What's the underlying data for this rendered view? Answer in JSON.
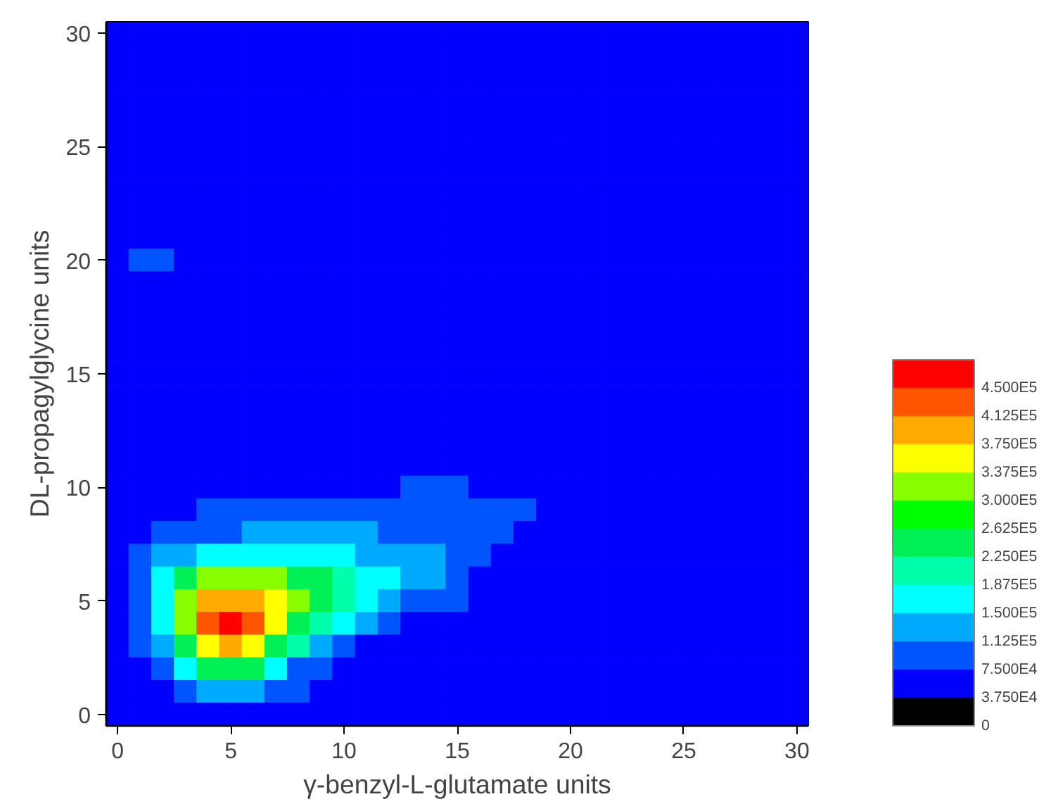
{
  "chart_data": {
    "type": "heatmap",
    "xlabel": "γ-benzyl-L-glutamate units",
    "ylabel": "DL-propagylglycine units",
    "categories": [
      "0",
      null,
      null,
      null,
      null,
      "5",
      null,
      null,
      null,
      null,
      "10",
      null,
      null,
      null,
      null,
      "15",
      null,
      null,
      null,
      null,
      "20",
      null,
      null,
      null,
      null,
      "25",
      null,
      null,
      null,
      null,
      "30"
    ],
    "y_categories": [
      "30",
      null,
      null,
      null,
      null,
      "25",
      null,
      null,
      null,
      null,
      "20",
      null,
      null,
      null,
      null,
      "15",
      null,
      null,
      null,
      null,
      "10",
      null,
      null,
      null,
      null,
      "5",
      null,
      null,
      null,
      null,
      "0"
    ],
    "cells": [
      [
        37500,
        37500,
        37500,
        37500,
        37500,
        37500,
        37500,
        37500,
        37500,
        37500,
        37500,
        37500,
        37500,
        37500,
        37500,
        37500,
        37500,
        37500,
        37500,
        37500,
        37500,
        37500,
        37500,
        37500,
        37500,
        37500,
        37500,
        37500,
        37500,
        37500,
        37500
      ],
      [
        37500,
        37500,
        37500,
        37500,
        37500,
        37500,
        37500,
        37500,
        37500,
        37500,
        37500,
        37500,
        37500,
        37500,
        37500,
        37500,
        37500,
        37500,
        37500,
        37500,
        37500,
        37500,
        37500,
        37500,
        37500,
        37500,
        37500,
        37500,
        37500,
        37500,
        37500
      ],
      [
        37500,
        37500,
        37500,
        37500,
        37500,
        37500,
        37500,
        37500,
        37500,
        37500,
        37500,
        37500,
        37500,
        37500,
        37500,
        37500,
        37500,
        37500,
        37500,
        37500,
        37500,
        37500,
        37500,
        37500,
        37500,
        37500,
        37500,
        37500,
        37500,
        37500,
        37500
      ],
      [
        37500,
        37500,
        37500,
        37500,
        37500,
        37500,
        37500,
        37500,
        37500,
        37500,
        37500,
        37500,
        37500,
        37500,
        37500,
        37500,
        37500,
        37500,
        37500,
        37500,
        37500,
        37500,
        37500,
        37500,
        37500,
        37500,
        37500,
        37500,
        37500,
        37500,
        37500
      ],
      [
        37500,
        37500,
        37500,
        37500,
        37500,
        37500,
        37500,
        37500,
        37500,
        37500,
        37500,
        37500,
        37500,
        37500,
        37500,
        37500,
        37500,
        37500,
        37500,
        37500,
        37500,
        37500,
        37500,
        37500,
        37500,
        37500,
        37500,
        37500,
        37500,
        37500,
        37500
      ],
      [
        37500,
        37500,
        37500,
        37500,
        37500,
        37500,
        37500,
        37500,
        37500,
        37500,
        37500,
        37500,
        37500,
        37500,
        37500,
        37500,
        37500,
        37500,
        37500,
        37500,
        37500,
        37500,
        37500,
        37500,
        37500,
        37500,
        37500,
        37500,
        37500,
        37500,
        37500
      ],
      [
        37500,
        37500,
        37500,
        37500,
        37500,
        37500,
        37500,
        37500,
        37500,
        37500,
        37500,
        37500,
        37500,
        37500,
        37500,
        37500,
        37500,
        37500,
        37500,
        37500,
        37500,
        37500,
        37500,
        37500,
        37500,
        37500,
        37500,
        37500,
        37500,
        37500,
        37500
      ],
      [
        37500,
        37500,
        37500,
        37500,
        37500,
        37500,
        37500,
        37500,
        37500,
        37500,
        37500,
        37500,
        37500,
        37500,
        37500,
        37500,
        37500,
        37500,
        37500,
        37500,
        37500,
        37500,
        37500,
        37500,
        37500,
        37500,
        37500,
        37500,
        37500,
        37500,
        37500
      ],
      [
        37500,
        37500,
        37500,
        37500,
        37500,
        37500,
        37500,
        37500,
        37500,
        37500,
        37500,
        37500,
        37500,
        37500,
        37500,
        37500,
        37500,
        37500,
        37500,
        37500,
        37500,
        37500,
        37500,
        37500,
        37500,
        37500,
        37500,
        37500,
        37500,
        37500,
        37500
      ],
      [
        37500,
        37500,
        37500,
        37500,
        37500,
        37500,
        37500,
        37500,
        37500,
        37500,
        37500,
        37500,
        37500,
        37500,
        37500,
        37500,
        37500,
        37500,
        37500,
        37500,
        37500,
        37500,
        37500,
        37500,
        37500,
        37500,
        37500,
        37500,
        37500,
        37500,
        37500
      ],
      [
        37500,
        75000,
        75000,
        37500,
        37500,
        37500,
        37500,
        37500,
        37500,
        37500,
        37500,
        37500,
        37500,
        37500,
        37500,
        37500,
        37500,
        37500,
        37500,
        37500,
        37500,
        37500,
        37500,
        37500,
        37500,
        37500,
        37500,
        37500,
        37500,
        37500,
        37500
      ],
      [
        37500,
        37500,
        37500,
        37500,
        37500,
        37500,
        37500,
        37500,
        37500,
        37500,
        37500,
        37500,
        37500,
        37500,
        37500,
        37500,
        37500,
        37500,
        37500,
        37500,
        37500,
        37500,
        37500,
        37500,
        37500,
        37500,
        37500,
        37500,
        37500,
        37500,
        37500
      ],
      [
        37500,
        37500,
        37500,
        37500,
        37500,
        37500,
        37500,
        37500,
        37500,
        37500,
        37500,
        37500,
        37500,
        37500,
        37500,
        37500,
        37500,
        37500,
        37500,
        37500,
        37500,
        37500,
        37500,
        37500,
        37500,
        37500,
        37500,
        37500,
        37500,
        37500,
        37500
      ],
      [
        37500,
        37500,
        37500,
        37500,
        37500,
        37500,
        37500,
        37500,
        37500,
        37500,
        37500,
        37500,
        37500,
        37500,
        37500,
        37500,
        37500,
        37500,
        37500,
        37500,
        37500,
        37500,
        37500,
        37500,
        37500,
        37500,
        37500,
        37500,
        37500,
        37500,
        37500
      ],
      [
        37500,
        37500,
        37500,
        37500,
        37500,
        37500,
        37500,
        37500,
        37500,
        37500,
        37500,
        37500,
        37500,
        37500,
        37500,
        37500,
        37500,
        37500,
        37500,
        37500,
        37500,
        37500,
        37500,
        37500,
        37500,
        37500,
        37500,
        37500,
        37500,
        37500,
        37500
      ],
      [
        37500,
        37500,
        37500,
        37500,
        37500,
        37500,
        37500,
        37500,
        37500,
        37500,
        37500,
        37500,
        37500,
        37500,
        37500,
        37500,
        37500,
        37500,
        37500,
        37500,
        37500,
        37500,
        37500,
        37500,
        37500,
        37500,
        37500,
        37500,
        37500,
        37500,
        37500
      ],
      [
        37500,
        37500,
        37500,
        37500,
        37500,
        37500,
        37500,
        37500,
        37500,
        37500,
        37500,
        37500,
        37500,
        37500,
        37500,
        37500,
        37500,
        37500,
        37500,
        37500,
        37500,
        37500,
        37500,
        37500,
        37500,
        37500,
        37500,
        37500,
        37500,
        37500,
        37500
      ],
      [
        37500,
        37500,
        37500,
        37500,
        37500,
        37500,
        37500,
        37500,
        37500,
        37500,
        37500,
        37500,
        37500,
        37500,
        37500,
        37500,
        37500,
        37500,
        37500,
        37500,
        37500,
        37500,
        37500,
        37500,
        37500,
        37500,
        37500,
        37500,
        37500,
        37500,
        37500
      ],
      [
        37500,
        37500,
        37500,
        37500,
        37500,
        37500,
        37500,
        37500,
        37500,
        37500,
        37500,
        37500,
        37500,
        37500,
        37500,
        37500,
        37500,
        37500,
        37500,
        37500,
        37500,
        37500,
        37500,
        37500,
        37500,
        37500,
        37500,
        37500,
        37500,
        37500,
        37500
      ],
      [
        37500,
        37500,
        37500,
        37500,
        37500,
        37500,
        37500,
        37500,
        37500,
        37500,
        37500,
        37500,
        37500,
        37500,
        37500,
        37500,
        37500,
        37500,
        37500,
        37500,
        37500,
        37500,
        37500,
        37500,
        37500,
        37500,
        37500,
        37500,
        37500,
        37500,
        37500
      ],
      [
        37500,
        37500,
        37500,
        37500,
        37500,
        37500,
        37500,
        37500,
        37500,
        37500,
        37500,
        37500,
        37500,
        75000,
        75000,
        75000,
        37500,
        37500,
        37500,
        37500,
        37500,
        37500,
        37500,
        37500,
        37500,
        37500,
        37500,
        37500,
        37500,
        37500,
        37500
      ],
      [
        37500,
        37500,
        37500,
        37500,
        75000,
        75000,
        75000,
        75000,
        75000,
        75000,
        75000,
        75000,
        75000,
        75000,
        75000,
        75000,
        75000,
        75000,
        75000,
        37500,
        37500,
        37500,
        37500,
        37500,
        37500,
        37500,
        37500,
        37500,
        37500,
        37500,
        37500
      ],
      [
        37500,
        37500,
        75000,
        75000,
        75000,
        75000,
        112500,
        112500,
        112500,
        112500,
        112500,
        112500,
        75000,
        75000,
        75000,
        75000,
        75000,
        75000,
        37500,
        37500,
        37500,
        37500,
        37500,
        37500,
        37500,
        37500,
        37500,
        37500,
        37500,
        37500,
        37500
      ],
      [
        37500,
        75000,
        112500,
        112500,
        150000,
        150000,
        150000,
        150000,
        150000,
        150000,
        150000,
        112500,
        112500,
        112500,
        112500,
        75000,
        75000,
        37500,
        37500,
        37500,
        37500,
        37500,
        37500,
        37500,
        37500,
        37500,
        37500,
        37500,
        37500,
        37500,
        37500
      ],
      [
        37500,
        75000,
        150000,
        262500,
        300000,
        300000,
        300000,
        300000,
        262500,
        225000,
        187500,
        150000,
        150000,
        112500,
        112500,
        75000,
        37500,
        37500,
        37500,
        37500,
        37500,
        37500,
        37500,
        37500,
        37500,
        37500,
        37500,
        37500,
        37500,
        37500,
        37500
      ],
      [
        37500,
        75000,
        150000,
        300000,
        375000,
        375000,
        375000,
        337500,
        300000,
        262500,
        187500,
        150000,
        112500,
        75000,
        75000,
        75000,
        37500,
        37500,
        37500,
        37500,
        37500,
        37500,
        37500,
        37500,
        37500,
        37500,
        37500,
        37500,
        37500,
        37500,
        37500
      ],
      [
        37500,
        75000,
        150000,
        300000,
        412500,
        450000,
        412500,
        337500,
        262500,
        187500,
        150000,
        112500,
        75000,
        37500,
        37500,
        37500,
        37500,
        37500,
        37500,
        37500,
        37500,
        37500,
        37500,
        37500,
        37500,
        37500,
        37500,
        37500,
        37500,
        37500,
        37500
      ],
      [
        37500,
        75000,
        112500,
        225000,
        337500,
        375000,
        337500,
        262500,
        187500,
        112500,
        75000,
        37500,
        37500,
        37500,
        37500,
        37500,
        37500,
        37500,
        37500,
        37500,
        37500,
        37500,
        37500,
        37500,
        37500,
        37500,
        37500,
        37500,
        37500,
        37500,
        37500
      ],
      [
        37500,
        37500,
        75000,
        150000,
        225000,
        262500,
        225000,
        150000,
        75000,
        75000,
        37500,
        37500,
        37500,
        37500,
        37500,
        37500,
        37500,
        37500,
        37500,
        37500,
        37500,
        37500,
        37500,
        37500,
        37500,
        37500,
        37500,
        37500,
        37500,
        37500,
        37500
      ],
      [
        37500,
        37500,
        37500,
        75000,
        112500,
        112500,
        112500,
        75000,
        75000,
        37500,
        37500,
        37500,
        37500,
        37500,
        37500,
        37500,
        37500,
        37500,
        37500,
        37500,
        37500,
        37500,
        37500,
        37500,
        37500,
        37500,
        37500,
        37500,
        37500,
        37500,
        37500
      ],
      [
        37500,
        37500,
        37500,
        37500,
        37500,
        37500,
        37500,
        37500,
        37500,
        37500,
        37500,
        37500,
        37500,
        37500,
        37500,
        37500,
        37500,
        37500,
        37500,
        37500,
        37500,
        37500,
        37500,
        37500,
        37500,
        37500,
        37500,
        37500,
        37500,
        37500,
        37500
      ]
    ],
    "clim": [
      0,
      487500
    ],
    "cticks": [
      0,
      {
        "value": 37500,
        "label": "3.750E4"
      },
      {
        "value": 75000,
        "label": "7.500E4"
      },
      {
        "value": 112500,
        "label": "1.125E5"
      },
      {
        "value": 150000,
        "label": "1.500E5"
      },
      {
        "value": 187500,
        "label": "1.875E5"
      },
      {
        "value": 225000,
        "label": "2.250E5"
      },
      {
        "value": 262500,
        "label": "2.625E5"
      },
      {
        "value": 300000,
        "label": "3.000E5"
      },
      {
        "value": 337500,
        "label": "3.375E5"
      },
      {
        "value": 375000,
        "label": "3.750E5"
      },
      {
        "value": 412500,
        "label": "4.125E5"
      },
      {
        "value": 450000,
        "label": "4.500E5"
      }
    ],
    "colors": [
      "#000000",
      "#0000ff",
      "#0055ff",
      "#00aaff",
      "#00ffff",
      "#00ffaa",
      "#00f055",
      "#00ff00",
      "#88ff00",
      "#ffff00",
      "#ffaa00",
      "#ff5500",
      "#ff0000"
    ]
  }
}
